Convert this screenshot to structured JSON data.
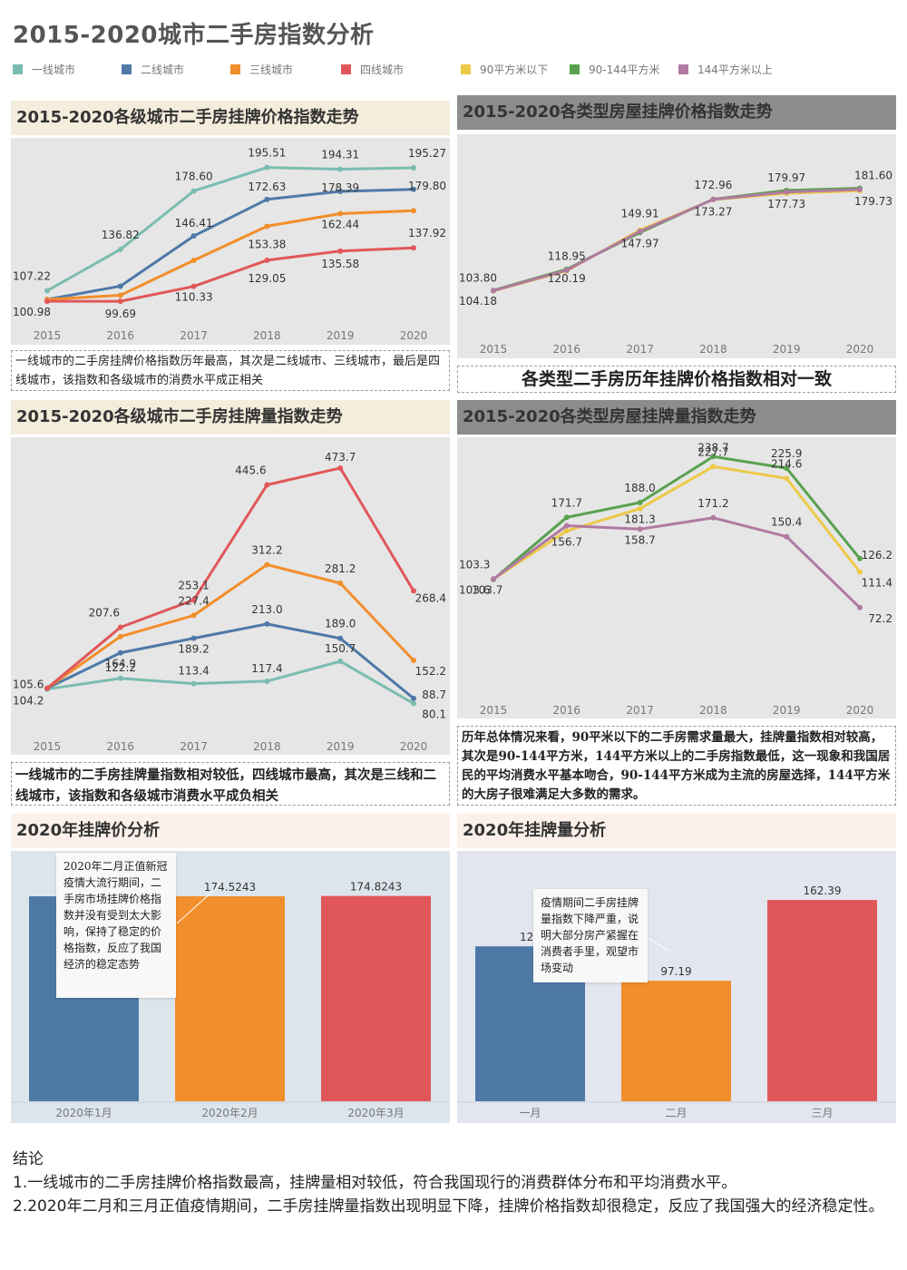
{
  "page_title": "2015-2020城市二手房指数分析",
  "legend": [
    {
      "label": "一线城市",
      "color": "#7bbcb0"
    },
    {
      "label": "二线城市",
      "color": "#4e79a7"
    },
    {
      "label": "三线城市",
      "color": "#f28e2b"
    },
    {
      "label": "四线城市",
      "color": "#e15759"
    },
    {
      "label": "90平方米以下",
      "color": "#edc948"
    },
    {
      "label": "90-144平方米",
      "color": "#59a14f"
    },
    {
      "label": "144平方米以上",
      "color": "#b07aa1"
    }
  ],
  "panels": {
    "p1_title": "2015-2020各级城市二手房挂牌价格指数走势",
    "p2_title": "2015-2020各类型房屋挂牌价格指数走势",
    "p3_title": "2015-2020各级城市二手房挂牌量指数走势",
    "p4_title": "2015-2020各类型房屋挂牌量指数走势",
    "p5_title": "2020年挂牌价分析",
    "p6_title": "2020年挂牌量分析"
  },
  "notes": {
    "n1": "一线城市的二手房挂牌价格指数历年最高，其次是二线城市、三线城市，最后是四线城市，该指数和各级城市的消费水平成正相关",
    "n2": "各类型二手房历年挂牌价格指数相对一致",
    "n3": "一线城市的二手房挂牌量指数相对较低，四线城市最高，其次是三线和二线城市，该指数和各级城市消费水平成负相关",
    "n4": "历年总体情况来看，90平米以下的二手房需求量最大，挂牌量指数相对较高，其次是90-144平方米，144平方米以上的二手房指数最低，这一现象和我国居民的平均消费水平基本吻合，90-144平方米成为主流的房屋选择，144平方米的大房子很难满足大多数的需求。",
    "c5": "2020年二月正值新冠疫情大流行期间，二手房市场挂牌价格指数并没有受到太大影响，保持了稳定的价格指数，反应了我国经济的稳定态势",
    "c6": "疫情期间二手房挂牌量指数下降严重，说明大部分房产紧握在消费者手里，观望市场变动"
  },
  "conclusion": {
    "heading": "结论",
    "line1": "1.一线城市的二手房挂牌价格指数最高，挂牌量相对较低，符合我国现行的消费群体分布和平均消费水平。",
    "line2": "2.2020年二月和三月正值疫情期间，二手房挂牌量指数出现明显下降，挂牌价格指数却很稳定，反应了我国强大的经济稳定性。"
  },
  "chart_data": [
    {
      "id": "c1",
      "type": "line",
      "title": "2015-2020各级城市二手房挂牌价格指数走势",
      "x": [
        "2015",
        "2016",
        "2017",
        "2018",
        "2019",
        "2020"
      ],
      "ylim": [
        90,
        205
      ],
      "series": [
        {
          "name": "一线城市",
          "color": "#7bbcb0",
          "values": [
            107.22,
            136.82,
            178.6,
            195.51,
            194.31,
            195.27
          ],
          "labels": [
            "107.22",
            "136.82",
            "178.60",
            "195.51",
            "194.31",
            "195.27"
          ]
        },
        {
          "name": "二线城市",
          "color": "#4e79a7",
          "values": [
            100.98,
            110.5,
            146.41,
            172.63,
            178.39,
            179.8
          ],
          "labels": [
            "100.98",
            "",
            "146.41",
            "172.63",
            "178.39",
            "179.80"
          ]
        },
        {
          "name": "三线城市",
          "color": "#f28e2b",
          "values": [
            100.98,
            104.0,
            129.0,
            153.38,
            162.44,
            164.5
          ],
          "labels": [
            "",
            "",
            "",
            "153.38",
            "162.44",
            ""
          ]
        },
        {
          "name": "四线城市",
          "color": "#e15759",
          "values": [
            99.69,
            99.69,
            110.33,
            129.05,
            135.58,
            137.92
          ],
          "labels": [
            "",
            "99.69",
            "110.33",
            "129.05",
            "135.58",
            "137.92"
          ]
        }
      ]
    },
    {
      "id": "c2",
      "type": "line",
      "title": "2015-2020各类型房屋挂牌价格指数走势",
      "x": [
        "2015",
        "2016",
        "2017",
        "2018",
        "2019",
        "2020"
      ],
      "ylim": [
        85,
        195
      ],
      "series": [
        {
          "name": "90平方米以下",
          "color": "#edc948",
          "values": [
            103.8,
            118.95,
            149.91,
            172.96,
            177.73,
            179.73
          ],
          "labels": [
            "103.80",
            "118.95",
            "149.91",
            "172.96",
            "177.73",
            "179.73"
          ]
        },
        {
          "name": "90-144平方米",
          "color": "#59a14f",
          "values": [
            104.18,
            120.19,
            147.97,
            173.27,
            179.97,
            181.6
          ],
          "labels": [
            "104.18",
            "120.19",
            "147.97",
            "173.27",
            "179.97",
            "181.60"
          ]
        },
        {
          "name": "144平方米以上",
          "color": "#b07aa1",
          "values": [
            104.0,
            119.5,
            148.9,
            173.1,
            178.8,
            180.6
          ],
          "labels": [
            "",
            "",
            "",
            "",
            "",
            ""
          ]
        }
      ]
    },
    {
      "id": "c3",
      "type": "line",
      "title": "2015-2020各级城市二手房挂牌量指数走势",
      "x": [
        "2015",
        "2016",
        "2017",
        "2018",
        "2019",
        "2020"
      ],
      "ylim": [
        40,
        510
      ],
      "series": [
        {
          "name": "一线城市",
          "color": "#7bbcb0",
          "values": [
            104.2,
            122.2,
            113.4,
            117.4,
            150.7,
            80.1
          ],
          "labels": [
            "104.2",
            "122.2",
            "113.4",
            "117.4",
            "150.7",
            "80.1"
          ]
        },
        {
          "name": "二线城市",
          "color": "#4e79a7",
          "values": [
            105.6,
            164.9,
            189.2,
            213.0,
            189.0,
            88.7
          ],
          "labels": [
            "105.6",
            "164.9",
            "189.2",
            "213.0",
            "189.0",
            "88.7"
          ]
        },
        {
          "name": "三线城市",
          "color": "#f28e2b",
          "values": [
            105.6,
            192.0,
            227.4,
            312.2,
            281.2,
            152.2
          ],
          "labels": [
            "",
            "",
            "227.4",
            "312.2",
            "281.2",
            "152.2"
          ]
        },
        {
          "name": "四线城市",
          "color": "#e15759",
          "values": [
            105.6,
            207.6,
            253.1,
            445.6,
            473.7,
            268.4
          ],
          "labels": [
            "",
            "207.6",
            "253.1",
            "445.6",
            "473.7",
            "268.4"
          ]
        }
      ]
    },
    {
      "id": "c4",
      "type": "line",
      "title": "2015-2020各类型房屋挂牌量指数走势",
      "x": [
        "2015",
        "2016",
        "2017",
        "2018",
        "2019",
        "2020"
      ],
      "ylim": [
        50,
        250
      ],
      "series": [
        {
          "name": "90平方米以下",
          "color": "#edc948",
          "values": [
            103.6,
            156.7,
            181.3,
            227.7,
            214.6,
            111.4
          ],
          "labels": [
            "103.6",
            "156.7",
            "181.3",
            "227.7",
            "214.6",
            "111.4"
          ]
        },
        {
          "name": "90-144平方米",
          "color": "#59a14f",
          "values": [
            103.3,
            171.7,
            188.0,
            238.7,
            225.9,
            126.2
          ],
          "labels": [
            "103.3",
            "171.7",
            "188.0",
            "238.7",
            "225.9",
            "126.2"
          ]
        },
        {
          "name": "144平方米以上",
          "color": "#b07aa1",
          "values": [
            103.7,
            162.5,
            158.7,
            171.2,
            150.4,
            72.2
          ],
          "labels": [
            "103.7",
            "",
            "158.7",
            "171.2",
            "150.4",
            "72.2"
          ]
        }
      ]
    },
    {
      "id": "c5",
      "type": "bar",
      "title": "2020年挂牌价分析",
      "categories": [
        "2020年1月",
        "2020年2月",
        "2020年3月"
      ],
      "values": [
        174.5,
        174.5243,
        174.8243
      ],
      "labels": [
        "",
        "174.5243",
        "174.8243"
      ],
      "colors": [
        "#4e79a7",
        "#f28e2b",
        "#e15759"
      ],
      "ylim": [
        0,
        190
      ]
    },
    {
      "id": "c6",
      "type": "bar",
      "title": "2020年挂牌量分析",
      "categories": [
        "一月",
        "二月",
        "三月"
      ],
      "values": [
        125,
        97.19,
        162.39
      ],
      "labels": [
        "125",
        "97.19",
        "162.39"
      ],
      "colors": [
        "#4e79a7",
        "#f28e2b",
        "#e15759"
      ],
      "ylim": [
        0,
        180
      ]
    }
  ]
}
